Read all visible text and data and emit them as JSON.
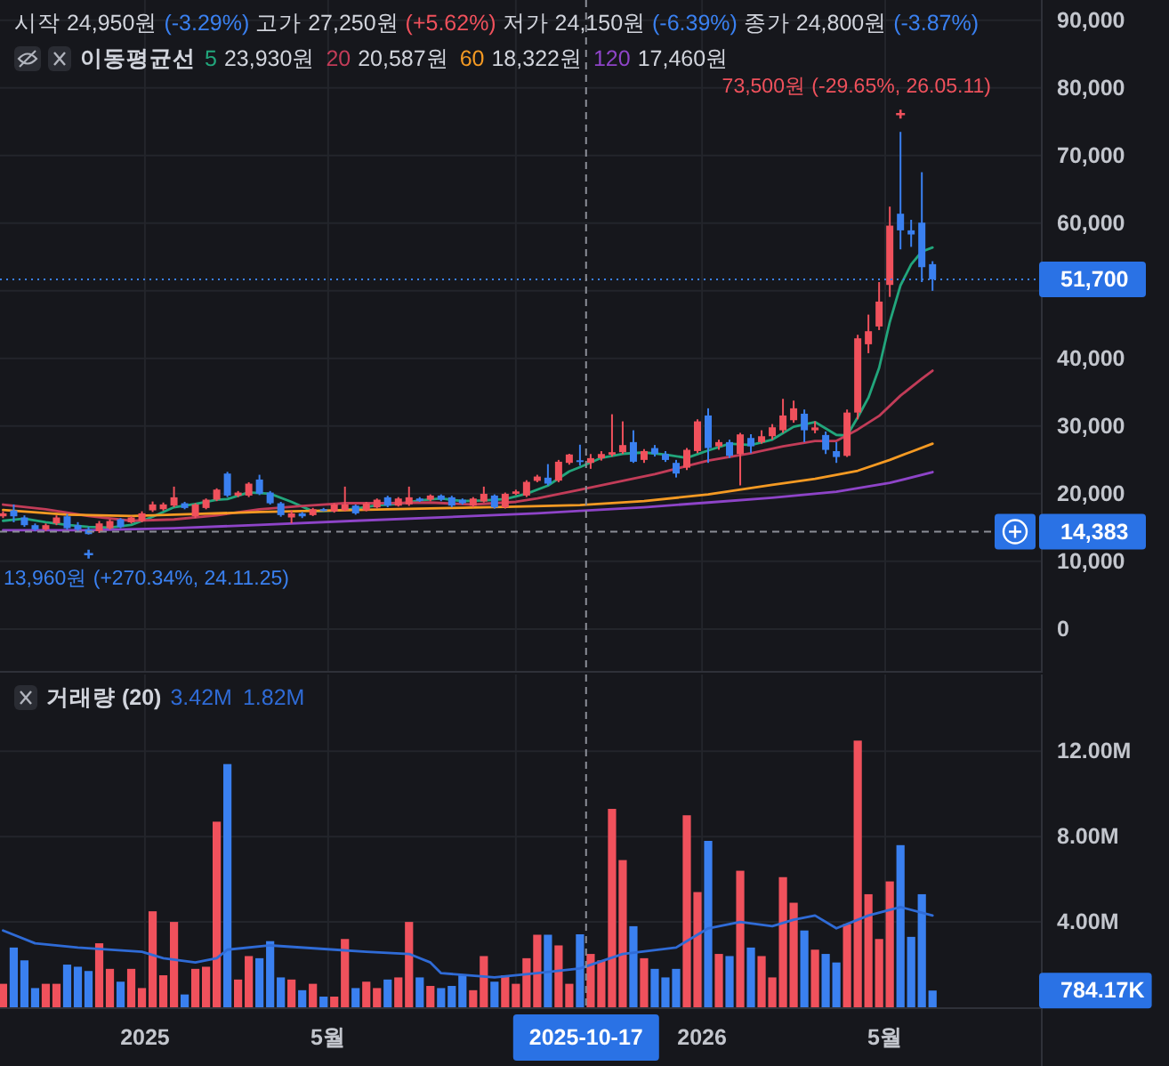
{
  "chart_data": [
    {
      "type": "candlestick",
      "subtitle": "시작 24,950원 (-3.29%) 고가 27,250원 (+5.62%) 저가 24,150원 (-6.39%) 종가 24,800원 (-3.87%)",
      "legend_title": "이동평균선",
      "legend": "top left",
      "tick_labels": "y",
      "grid": true,
      "x": [
        "2024-09-30",
        "2024-10-07",
        "2024-10-14",
        "2024-10-21",
        "2024-10-28",
        "2024-11-04",
        "2024-11-11",
        "2024-11-18",
        "2024-11-25",
        "2024-12-02",
        "2024-12-09",
        "2024-12-16",
        "2024-12-23",
        "2024-12-30",
        "2025-01-06",
        "2025-01-13",
        "2025-01-20",
        "2025-01-27",
        "2025-02-03",
        "2025-02-10",
        "2025-02-17",
        "2025-02-24",
        "2025-03-03",
        "2025-03-10",
        "2025-03-17",
        "2025-03-24",
        "2025-03-31",
        "2025-04-07",
        "2025-04-14",
        "2025-04-21",
        "2025-04-28",
        "2025-05-05",
        "2025-05-12",
        "2025-05-19",
        "2025-05-26",
        "2025-06-02",
        "2025-06-09",
        "2025-06-16",
        "2025-06-23",
        "2025-06-30",
        "2025-07-07",
        "2025-07-14",
        "2025-07-21",
        "2025-07-28",
        "2025-08-04",
        "2025-08-11",
        "2025-08-18",
        "2025-08-25",
        "2025-09-01",
        "2025-09-08",
        "2025-09-15",
        "2025-09-22",
        "2025-09-29",
        "2025-10-06",
        "2025-10-13",
        "2025-10-20",
        "2025-10-27",
        "2025-11-03",
        "2025-11-10",
        "2025-11-17",
        "2025-11-24",
        "2025-12-01",
        "2025-12-08",
        "2025-12-15",
        "2025-12-22",
        "2025-12-29",
        "2026-01-05",
        "2026-01-12",
        "2026-01-19",
        "2026-01-26",
        "2026-02-02",
        "2026-02-09",
        "2026-02-16",
        "2026-02-23",
        "2026-03-02",
        "2026-03-09",
        "2026-03-16",
        "2026-03-23",
        "2026-03-30",
        "2026-04-06",
        "2026-04-13",
        "2026-04-20",
        "2026-04-27",
        "2026-05-04",
        "2026-05-11",
        "2026-05-18",
        "2026-05-25",
        "2026-06-01"
      ],
      "ohlc": [
        [
          16660,
          17400,
          16400,
          17100
        ],
        [
          17540,
          18420,
          15780,
          16660
        ],
        [
          16490,
          16800,
          15100,
          15350
        ],
        [
          15350,
          15600,
          14500,
          14730
        ],
        [
          14730,
          15600,
          14500,
          15350
        ],
        [
          15610,
          16800,
          15350,
          16490
        ],
        [
          16660,
          17000,
          14700,
          14900
        ],
        [
          15350,
          15800,
          14400,
          14730
        ],
        [
          14730,
          15100,
          13960,
          14030
        ],
        [
          14470,
          15960,
          14200,
          15610
        ],
        [
          14900,
          16200,
          14700,
          15960
        ],
        [
          16220,
          16400,
          14900,
          15080
        ],
        [
          15780,
          16700,
          15600,
          16490
        ],
        [
          15960,
          17400,
          15800,
          17100
        ],
        [
          17540,
          18850,
          17300,
          18420
        ],
        [
          17710,
          18700,
          17500,
          18420
        ],
        [
          18240,
          21050,
          18000,
          19470
        ],
        [
          18590,
          18800,
          17700,
          17890
        ],
        [
          16660,
          18600,
          16400,
          18420
        ],
        [
          17890,
          19300,
          17700,
          19120
        ],
        [
          19120,
          20800,
          18900,
          20610
        ],
        [
          22980,
          23240,
          19500,
          19730
        ],
        [
          19730,
          20400,
          19500,
          20170
        ],
        [
          19730,
          21700,
          19500,
          21490
        ],
        [
          22100,
          22800,
          19800,
          20000
        ],
        [
          20170,
          20400,
          18400,
          18590
        ],
        [
          18590,
          18800,
          16600,
          16840
        ],
        [
          16490,
          17540,
          15610,
          17100
        ],
        [
          17100,
          17300,
          16400,
          16660
        ],
        [
          16840,
          17900,
          16700,
          17710
        ],
        [
          17710,
          17900,
          17400,
          17540
        ],
        [
          17360,
          18600,
          17200,
          18420
        ],
        [
          17540,
          21050,
          17400,
          18420
        ],
        [
          18240,
          18400,
          16900,
          17100
        ],
        [
          17540,
          18800,
          17400,
          18590
        ],
        [
          17980,
          19300,
          17800,
          19120
        ],
        [
          19470,
          19700,
          18000,
          18240
        ],
        [
          18240,
          19500,
          18100,
          19290
        ],
        [
          18420,
          21050,
          18200,
          19470
        ],
        [
          19290,
          19500,
          18800,
          18940
        ],
        [
          19120,
          19900,
          18900,
          19730
        ],
        [
          19730,
          19900,
          18900,
          19120
        ],
        [
          19470,
          19700,
          18000,
          18240
        ],
        [
          19120,
          19300,
          18400,
          18590
        ],
        [
          18240,
          19500,
          18000,
          19290
        ],
        [
          18850,
          21050,
          18700,
          19990
        ],
        [
          19730,
          19900,
          17800,
          17980
        ],
        [
          17980,
          20170,
          17800,
          19990
        ],
        [
          19990,
          20600,
          19800,
          20340
        ],
        [
          19730,
          22000,
          19500,
          21750
        ],
        [
          21900,
          22800,
          21700,
          22540
        ],
        [
          22370,
          24380,
          21230,
          21490
        ],
        [
          21930,
          25000,
          21700,
          24730
        ],
        [
          24560,
          25900,
          24300,
          25800
        ],
        [
          24950,
          27250,
          24150,
          24800
        ],
        [
          24560,
          25870,
          23680,
          25260
        ],
        [
          25260,
          26300,
          24900,
          25870
        ],
        [
          25780,
          31750,
          25500,
          26140
        ],
        [
          26140,
          30700,
          25870,
          27190
        ],
        [
          27630,
          29380,
          24560,
          24730
        ],
        [
          25000,
          26600,
          24560,
          26310
        ],
        [
          26750,
          27200,
          25500,
          25870
        ],
        [
          25870,
          26300,
          24700,
          24990
        ],
        [
          24560,
          25000,
          22400,
          22980
        ],
        [
          23850,
          26750,
          23500,
          26490
        ],
        [
          26310,
          31000,
          26000,
          30700
        ],
        [
          31570,
          32630,
          24560,
          26750
        ],
        [
          27010,
          28000,
          26500,
          27630
        ],
        [
          27630,
          28000,
          25300,
          25610
        ],
        [
          25870,
          29000,
          21230,
          28770
        ],
        [
          28240,
          28800,
          26000,
          27010
        ],
        [
          27630,
          29380,
          27400,
          28500
        ],
        [
          28500,
          30300,
          28000,
          29820
        ],
        [
          29380,
          34030,
          29000,
          31570
        ],
        [
          30870,
          33770,
          30500,
          32630
        ],
        [
          31830,
          32450,
          27620,
          29380
        ],
        [
          29380,
          30700,
          28940,
          29800
        ],
        [
          28680,
          29200,
          25870,
          26480
        ],
        [
          26300,
          27620,
          24560,
          25430
        ],
        [
          25600,
          32450,
          25430,
          32000
        ],
        [
          32000,
          43500,
          31000,
          42980
        ],
        [
          42100,
          46480,
          40780,
          44030
        ],
        [
          44730,
          51300,
          44200,
          48410
        ],
        [
          50870,
          62450,
          49100,
          59640
        ],
        [
          61400,
          73500,
          56130,
          58940
        ],
        [
          58940,
          60500,
          56500,
          58330
        ],
        [
          60080,
          67540,
          51300,
          53500
        ],
        [
          53940,
          54380,
          50000,
          51700
        ]
      ],
      "colors": [
        "#f0515c",
        "#3a80f0",
        "#3a80f0",
        "#3a80f0",
        "#f0515c",
        "#f0515c",
        "#3a80f0",
        "#3a80f0",
        "#3a80f0",
        "#f0515c",
        "#f0515c",
        "#3a80f0",
        "#f0515c",
        "#f0515c",
        "#f0515c",
        "#f0515c",
        "#f0515c",
        "#3a80f0",
        "#f0515c",
        "#f0515c",
        "#f0515c",
        "#3a80f0",
        "#f0515c",
        "#f0515c",
        "#3a80f0",
        "#3a80f0",
        "#3a80f0",
        "#f0515c",
        "#3a80f0",
        "#f0515c",
        "#3a80f0",
        "#f0515c",
        "#f0515c",
        "#3a80f0",
        "#f0515c",
        "#f0515c",
        "#3a80f0",
        "#f0515c",
        "#f0515c",
        "#3a80f0",
        "#f0515c",
        "#3a80f0",
        "#3a80f0",
        "#3a80f0",
        "#f0515c",
        "#f0515c",
        "#3a80f0",
        "#f0515c",
        "#f0515c",
        "#f0515c",
        "#f0515c",
        "#3a80f0",
        "#f0515c",
        "#f0515c",
        "#3a80f0",
        "#f0515c",
        "#f0515c",
        "#f0515c",
        "#f0515c",
        "#3a80f0",
        "#f0515c",
        "#3a80f0",
        "#3a80f0",
        "#3a80f0",
        "#f0515c",
        "#f0515c",
        "#3a80f0",
        "#f0515c",
        "#3a80f0",
        "#f0515c",
        "#3a80f0",
        "#f0515c",
        "#f0515c",
        "#f0515c",
        "#f0515c",
        "#3a80f0",
        "#f0515c",
        "#3a80f0",
        "#3a80f0",
        "#f0515c",
        "#f0515c",
        "#f0515c",
        "#f0515c",
        "#f0515c",
        "#3a80f0",
        "#3a80f0",
        "#3a80f0",
        "#3a80f0"
      ],
      "series": [
        {
          "name": "5",
          "type": "line",
          "color": "#22a67c",
          "x": [
            "2024-09-30",
            "2024-10-14",
            "2024-10-28",
            "2024-11-11",
            "2024-11-25",
            "2024-12-09",
            "2024-12-23",
            "2025-01-06",
            "2025-01-20",
            "2025-02-03",
            "2025-02-17",
            "2025-02-24",
            "2025-03-10",
            "2025-03-24",
            "2025-04-07",
            "2025-04-21",
            "2025-05-05",
            "2025-05-19",
            "2025-06-02",
            "2025-06-16",
            "2025-06-30",
            "2025-07-14",
            "2025-07-28",
            "2025-08-11",
            "2025-08-25",
            "2025-09-08",
            "2025-09-22",
            "2025-10-06",
            "2025-10-13",
            "2025-10-27",
            "2025-11-10",
            "2025-11-24",
            "2025-12-08",
            "2025-12-22",
            "2026-01-05",
            "2026-01-19",
            "2026-02-02",
            "2026-02-16",
            "2026-03-02",
            "2026-03-16",
            "2026-03-30",
            "2026-04-06",
            "2026-04-13",
            "2026-04-20",
            "2026-04-27",
            "2026-05-04",
            "2026-05-11",
            "2026-05-18",
            "2026-05-25",
            "2026-06-01"
          ],
          "values": [
            16000,
            16300,
            15800,
            15400,
            15100,
            15000,
            15400,
            16600,
            18000,
            18500,
            19100,
            19200,
            20200,
            20000,
            18800,
            17400,
            17500,
            17800,
            18300,
            18500,
            19000,
            19300,
            18900,
            19000,
            19200,
            20000,
            21200,
            23300,
            23930,
            25300,
            25900,
            26100,
            25800,
            25300,
            26400,
            27400,
            27200,
            28000,
            29900,
            30600,
            28700,
            28600,
            31300,
            34200,
            38600,
            45400,
            50800,
            53900,
            55800,
            56400
          ]
        },
        {
          "name": "20",
          "type": "line",
          "color": "#c23c58",
          "x": [
            "2024-09-30",
            "2024-10-28",
            "2024-11-25",
            "2024-12-23",
            "2025-01-20",
            "2025-02-17",
            "2025-03-17",
            "2025-04-14",
            "2025-05-12",
            "2025-06-09",
            "2025-07-07",
            "2025-08-04",
            "2025-09-01",
            "2025-09-15",
            "2025-10-13",
            "2025-11-10",
            "2025-12-01",
            "2026-01-05",
            "2026-02-02",
            "2026-02-23",
            "2026-03-16",
            "2026-03-30",
            "2026-04-13",
            "2026-04-27",
            "2026-05-11",
            "2026-05-25",
            "2026-06-01"
          ],
          "values": [
            18400,
            17700,
            16700,
            16000,
            16200,
            16800,
            17700,
            18200,
            18600,
            18600,
            18700,
            18400,
            18800,
            19300,
            20587,
            21900,
            22900,
            24900,
            26000,
            27000,
            27800,
            27800,
            29500,
            31500,
            34500,
            37000,
            38200
          ]
        },
        {
          "name": "60",
          "type": "line",
          "color": "#f59a23",
          "x": [
            "2024-09-30",
            "2024-11-11",
            "2024-12-23",
            "2025-02-03",
            "2025-03-17",
            "2025-04-28",
            "2025-06-09",
            "2025-07-21",
            "2025-09-01",
            "2025-10-13",
            "2025-11-24",
            "2026-01-05",
            "2026-02-16",
            "2026-03-16",
            "2026-04-13",
            "2026-05-04",
            "2026-05-18",
            "2026-06-01"
          ],
          "values": [
            17600,
            16900,
            16700,
            17000,
            17300,
            17500,
            17700,
            17900,
            18100,
            18322,
            18900,
            19900,
            21300,
            22200,
            23400,
            25000,
            26200,
            27400
          ]
        },
        {
          "name": "120",
          "type": "line",
          "color": "#8e44c8",
          "x": [
            "2024-09-30",
            "2024-11-25",
            "2025-01-20",
            "2025-03-17",
            "2025-05-19",
            "2025-08-04",
            "2025-09-15",
            "2025-10-13",
            "2025-11-24",
            "2026-01-05",
            "2026-02-16",
            "2026-03-30",
            "2026-05-04",
            "2026-06-01"
          ],
          "values": [
            14600,
            14600,
            14900,
            15400,
            16000,
            16700,
            17100,
            17460,
            18000,
            18700,
            19400,
            20300,
            21600,
            23200
          ]
        }
      ],
      "annotations": [
        "23,930원",
        "20,587원",
        "18,322원",
        "17,460원",
        {
          "text": "73,500원 (-29.65%, 26.05.11)",
          "x": "2026-05-11",
          "y": 73500
        },
        {
          "text": "13,960원 (+270.34%, 24.11.25)",
          "x": "2024-11-25",
          "y": 13960
        }
      ],
      "ref_lines": [
        {
          "axis": "y",
          "value": 51700,
          "color": "#3a80f0",
          "line_style": "dotted"
        },
        {
          "axis": "y",
          "value": 14383,
          "color": "#8b8e97",
          "line_style": "dashed"
        },
        {
          "axis": "x",
          "value": "2025-10-17",
          "color": "#8b8e97",
          "line_style": "dashed"
        }
      ],
      "xlim": [
        "2024-09-28",
        "2026-08-11"
      ],
      "xticks": [
        {
          "value": "2025",
          "label": null
        },
        {
          "value": "2025-05",
          "label": null
        },
        {
          "value": "2025-09",
          "label": null
        },
        {
          "value": "2026",
          "label": null
        },
        {
          "value": "2026-05",
          "label": null
        }
      ],
      "ylim": [
        -6200,
        93000
      ],
      "yticks": [
        0,
        {
          "value": 10000,
          "label": "10,000"
        },
        {
          "value": 14383,
          "label": "14,383"
        },
        {
          "value": 20000,
          "label": "20,000"
        },
        {
          "value": 30000,
          "label": "30,000"
        },
        {
          "value": 40000,
          "label": "40,000"
        },
        {
          "value": 50000,
          "label": null
        },
        {
          "value": 51700,
          "label": "51,700"
        },
        {
          "value": 60000,
          "label": "60,000"
        },
        {
          "value": 70000,
          "label": "70,000"
        },
        {
          "value": 80000,
          "label": "80,000"
        },
        {
          "value": 90000,
          "label": "90,000"
        }
      ]
    },
    {
      "type": "bar",
      "title": "거래량 (20)",
      "grid": true,
      "x": [
        "2024-09-30",
        "2024-10-07",
        "2024-10-14",
        "2024-10-21",
        "2024-10-28",
        "2024-11-04",
        "2024-11-11",
        "2024-11-18",
        "2024-11-25",
        "2024-12-02",
        "2024-12-09",
        "2024-12-16",
        "2024-12-23",
        "2024-12-30",
        "2025-01-06",
        "2025-01-13",
        "2025-01-20",
        "2025-01-27",
        "2025-02-03",
        "2025-02-10",
        "2025-02-17",
        "2025-02-24",
        "2025-03-03",
        "2025-03-10",
        "2025-03-17",
        "2025-03-24",
        "2025-03-31",
        "2025-04-07",
        "2025-04-14",
        "2025-04-21",
        "2025-04-28",
        "2025-05-05",
        "2025-05-12",
        "2025-05-19",
        "2025-05-26",
        "2025-06-02",
        "2025-06-09",
        "2025-06-16",
        "2025-06-23",
        "2025-06-30",
        "2025-07-07",
        "2025-07-14",
        "2025-07-21",
        "2025-07-28",
        "2025-08-04",
        "2025-08-11",
        "2025-08-18",
        "2025-08-25",
        "2025-09-01",
        "2025-09-08",
        "2025-09-15",
        "2025-09-22",
        "2025-09-29",
        "2025-10-06",
        "2025-10-13",
        "2025-10-20",
        "2025-10-27",
        "2025-11-03",
        "2025-11-10",
        "2025-11-17",
        "2025-11-24",
        "2025-12-01",
        "2025-12-08",
        "2025-12-15",
        "2025-12-22",
        "2025-12-29",
        "2026-01-05",
        "2026-01-12",
        "2026-01-19",
        "2026-01-26",
        "2026-02-02",
        "2026-02-09",
        "2026-02-16",
        "2026-02-23",
        "2026-03-02",
        "2026-03-09",
        "2026-03-16",
        "2026-03-23",
        "2026-03-30",
        "2026-04-06",
        "2026-04-13",
        "2026-04-20",
        "2026-04-27",
        "2026-05-04",
        "2026-05-11",
        "2026-05-18",
        "2026-05-25",
        "2026-06-01"
      ],
      "series": [
        {
          "values": [
            1100000,
            2800000,
            2200000,
            900000,
            1100000,
            1100000,
            2000000,
            1900000,
            1700000,
            3000000,
            1800000,
            1200000,
            1800000,
            900000,
            4500000,
            1500000,
            4000000,
            600000,
            1800000,
            1900000,
            8700000,
            11400000,
            1300000,
            2400000,
            2300000,
            3100000,
            1400000,
            1300000,
            800000,
            1100000,
            500000,
            500000,
            3200000,
            900000,
            1200000,
            900000,
            1300000,
            1400000,
            4000000,
            1400000,
            1000000,
            900000,
            1000000,
            1500000,
            800000,
            2400000,
            1200000,
            1500000,
            1100000,
            2300000,
            3400000,
            3400000,
            2900000,
            1100000,
            3420000,
            2500000,
            2200000,
            9300000,
            6900000,
            3800000,
            2300000,
            1800000,
            1400000,
            1800000,
            9000000,
            5400000,
            7800000,
            2500000,
            2400000,
            6400000,
            2800000,
            2400000,
            1400000,
            6100000,
            4900000,
            3600000,
            2700000,
            2500000,
            2100000,
            3900000,
            12500000,
            5300000,
            3200000,
            5900000,
            7600000,
            3300000,
            5300000,
            784170
          ],
          "colors": [
            "#f0515c",
            "#3a80f0",
            "#3a80f0",
            "#3a80f0",
            "#f0515c",
            "#f0515c",
            "#3a80f0",
            "#3a80f0",
            "#3a80f0",
            "#f0515c",
            "#f0515c",
            "#3a80f0",
            "#f0515c",
            "#f0515c",
            "#f0515c",
            "#f0515c",
            "#f0515c",
            "#3a80f0",
            "#f0515c",
            "#f0515c",
            "#f0515c",
            "#3a80f0",
            "#f0515c",
            "#f0515c",
            "#3a80f0",
            "#3a80f0",
            "#3a80f0",
            "#f0515c",
            "#3a80f0",
            "#f0515c",
            "#3a80f0",
            "#f0515c",
            "#f0515c",
            "#3a80f0",
            "#f0515c",
            "#f0515c",
            "#3a80f0",
            "#f0515c",
            "#f0515c",
            "#3a80f0",
            "#f0515c",
            "#3a80f0",
            "#3a80f0",
            "#3a80f0",
            "#f0515c",
            "#f0515c",
            "#3a80f0",
            "#f0515c",
            "#f0515c",
            "#f0515c",
            "#f0515c",
            "#3a80f0",
            "#f0515c",
            "#f0515c",
            "#3a80f0",
            "#f0515c",
            "#f0515c",
            "#f0515c",
            "#f0515c",
            "#3a80f0",
            "#f0515c",
            "#3a80f0",
            "#3a80f0",
            "#3a80f0",
            "#f0515c",
            "#f0515c",
            "#3a80f0",
            "#f0515c",
            "#3a80f0",
            "#f0515c",
            "#3a80f0",
            "#f0515c",
            "#f0515c",
            "#f0515c",
            "#f0515c",
            "#3a80f0",
            "#f0515c",
            "#3a80f0",
            "#3a80f0",
            "#f0515c",
            "#f0515c",
            "#f0515c",
            "#f0515c",
            "#f0515c",
            "#3a80f0",
            "#3a80f0",
            "#3a80f0",
            "#3a80f0"
          ]
        },
        {
          "type": "line",
          "color": "#2f6bd6",
          "x": [
            "2024-09-30",
            "2024-10-21",
            "2024-11-18",
            "2024-12-30",
            "2025-01-13",
            "2025-02-03",
            "2025-02-17",
            "2025-02-24",
            "2025-03-24",
            "2025-05-05",
            "2025-05-26",
            "2025-06-23",
            "2025-07-07",
            "2025-07-14",
            "2025-08-18",
            "2025-09-15",
            "2025-10-13",
            "2025-11-10",
            "2025-12-15",
            "2026-01-05",
            "2026-01-26",
            "2026-02-16",
            "2026-03-02",
            "2026-03-16",
            "2026-03-30",
            "2026-04-20",
            "2026-05-11",
            "2026-06-01"
          ],
          "values": [
            3600000,
            3000000,
            2800000,
            2600000,
            2300000,
            2100000,
            2300000,
            2700000,
            2900000,
            2700000,
            2600000,
            2500000,
            2100000,
            1600000,
            1400000,
            1600000,
            1820000,
            2500000,
            2800000,
            3700000,
            4000000,
            3800000,
            4100000,
            4300000,
            3700000,
            4300000,
            4700000,
            4300000
          ]
        }
      ],
      "annotations": [
        "3.42M",
        "1.82M",
        "784.17K"
      ],
      "ref_lines": [
        {
          "axis": "x",
          "value": "2025-10-17",
          "label": "2025-10-17",
          "color": "#8b8e97",
          "line_style": "dashed"
        }
      ],
      "xlim": [
        "2024-09-28",
        "2026-08-11"
      ],
      "xticks": [
        {
          "value": "2025",
          "label": "2025"
        },
        {
          "value": "2025-05",
          "label": "5월"
        },
        {
          "value": "2025-09",
          "label": null
        },
        {
          "value": "2026",
          "label": "2026"
        },
        {
          "value": "2026-05",
          "label": "5월"
        }
      ],
      "ylim": [
        0,
        15600000
      ],
      "yticks": [
        {
          "value": 4000000,
          "label": "4.00M"
        },
        {
          "value": 8000000,
          "label": "8.00M"
        },
        {
          "value": 12000000,
          "label": "12.00M"
        }
      ]
    }
  ]
}
